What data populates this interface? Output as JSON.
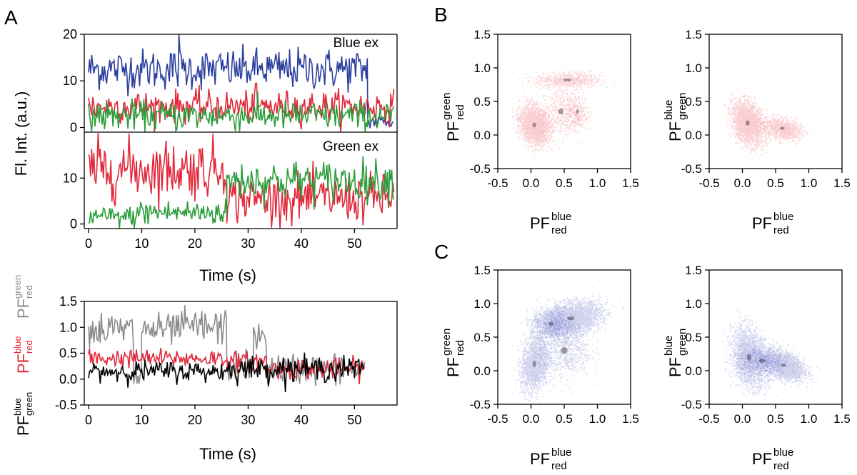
{
  "panel_labels": {
    "a": "A",
    "b": "B",
    "c": "C"
  },
  "colors": {
    "blue": "#2b3f9e",
    "red": "#e2283a",
    "green": "#2a9d3a",
    "gray": "#8c8c8c",
    "black": "#000000",
    "scatter_red": "#e8202e",
    "scatter_blue": "#2a30b0"
  },
  "pf_labels": {
    "base": "PF",
    "green_red": {
      "sup": "green",
      "sub": "red"
    },
    "blue_red": {
      "sup": "blue",
      "sub": "red"
    },
    "blue_green": {
      "sup": "blue",
      "sub": "green"
    }
  },
  "chart_data": [
    {
      "id": "A-blue-ex",
      "type": "line",
      "annotation": "Blue ex",
      "ylabel": "Fl. Int. (a.u.)",
      "xlim": [
        -0.8,
        58
      ],
      "ylim": [
        -1,
        20
      ],
      "yticks": [
        0,
        10,
        20
      ],
      "series": [
        {
          "name": "blue",
          "color": "#2b3f9e",
          "level": 12.5,
          "noise": 2.2,
          "t_end": 52.5,
          "tail": 1.2,
          "spike_t": 17,
          "spike_v": 20.5
        },
        {
          "name": "red",
          "color": "#e2283a",
          "level": 4.5,
          "noise": 1.7,
          "t_end": 57.5,
          "tail": 1.5,
          "spike_t": 31.5,
          "spike_v": 9.5
        },
        {
          "name": "green",
          "color": "#2a9d3a",
          "level": 2.5,
          "noise": 1.6,
          "t_end": 57.5,
          "tail": 1.5
        }
      ]
    },
    {
      "id": "A-green-ex",
      "type": "line",
      "annotation": "Green ex",
      "xlabel": "Time (s)",
      "xlim": [
        -0.8,
        58
      ],
      "ylim": [
        -1,
        20
      ],
      "yticks": [
        0,
        10
      ],
      "xticks": [
        0,
        10,
        20,
        30,
        40,
        50
      ],
      "series": [
        {
          "name": "red",
          "color": "#e2283a",
          "segments": [
            [
              0,
              26,
              12,
              3.2
            ],
            [
              26,
              57.5,
              5.5,
              2.6
            ]
          ]
        },
        {
          "name": "green",
          "color": "#2a9d3a",
          "segments": [
            [
              0,
              9,
              1.5,
              1.2
            ],
            [
              9,
              26,
              2.5,
              1.4
            ],
            [
              26,
              57.5,
              9.5,
              2.2
            ]
          ]
        }
      ]
    },
    {
      "id": "A-pf-trace",
      "type": "line",
      "xlabel": "Time (s)",
      "xlim": [
        -0.8,
        58
      ],
      "ylim": [
        -0.5,
        1.5
      ],
      "yticks": [
        -0.5,
        0.0,
        0.5,
        1.0,
        1.5
      ],
      "ytick_labels": [
        "-0.5",
        "0.0",
        "0.5",
        "1.0",
        "1.5"
      ],
      "xticks": [
        0,
        10,
        20,
        30,
        40,
        50
      ],
      "series": [
        {
          "name": "PF green→red",
          "color": "#8c8c8c",
          "segments": [
            [
              0,
              8.5,
              0.95,
              0.18
            ],
            [
              8.5,
              10,
              0.1,
              0.3
            ],
            [
              10,
              16.5,
              0.95,
              0.15
            ],
            [
              16.5,
              26,
              1.0,
              0.18
            ],
            [
              26,
              31,
              0.25,
              0.15
            ],
            [
              31,
              33.5,
              0.8,
              0.15
            ],
            [
              33.5,
              52,
              0.2,
              0.15
            ]
          ]
        },
        {
          "name": "PF blue→red",
          "color": "#e2283a",
          "segments": [
            [
              0,
              26,
              0.4,
              0.09
            ],
            [
              26,
              33.5,
              0.35,
              0.09
            ],
            [
              33.5,
              52,
              0.2,
              0.1
            ]
          ]
        },
        {
          "name": "PF blue→green",
          "color": "#000000",
          "segments": [
            [
              0,
              26,
              0.15,
              0.1
            ],
            [
              26,
              52,
              0.2,
              0.12
            ]
          ]
        }
      ]
    },
    {
      "id": "B-left",
      "type": "scatter",
      "color": "#e8202e",
      "xlim": [
        -0.5,
        1.5
      ],
      "ylim": [
        -0.5,
        1.5
      ],
      "ticks": [
        -0.5,
        0.0,
        0.5,
        1.0,
        1.5
      ],
      "tick_labels": [
        "-0.5",
        "0.0",
        "0.5",
        "1.0",
        "1.5"
      ],
      "xlabel": "PF blue red",
      "ylabel": "PF green red",
      "clusters": [
        {
          "x": 0.05,
          "y": 0.15,
          "sx": 0.11,
          "sy": 0.14,
          "n": 2600,
          "r": -0.2
        },
        {
          "x": 0.55,
          "y": 0.82,
          "sx": 0.25,
          "sy": 0.06,
          "n": 700
        },
        {
          "x": 0.45,
          "y": 0.35,
          "sx": 0.15,
          "sy": 0.18,
          "n": 500
        },
        {
          "x": 0.7,
          "y": 0.35,
          "sx": 0.08,
          "sy": 0.15,
          "n": 250
        }
      ]
    },
    {
      "id": "B-right",
      "type": "scatter",
      "color": "#e8202e",
      "xlim": [
        -0.5,
        1.5
      ],
      "ylim": [
        -0.5,
        1.5
      ],
      "ticks": [
        -0.5,
        0.0,
        0.5,
        1.0,
        1.5
      ],
      "tick_labels": [
        "-0.5",
        "0.0",
        "0.5",
        "1.0",
        "1.5"
      ],
      "xlabel": "PF blue red",
      "ylabel": "PF blue green",
      "clusters": [
        {
          "x": 0.08,
          "y": 0.18,
          "sx": 0.12,
          "sy": 0.16,
          "n": 2500,
          "r": -0.3
        },
        {
          "x": 0.6,
          "y": 0.1,
          "sx": 0.14,
          "sy": 0.08,
          "n": 1100,
          "r": -0.3
        }
      ]
    },
    {
      "id": "C-left",
      "type": "scatter",
      "color": "#2a30b0",
      "xlim": [
        -0.5,
        1.5
      ],
      "ylim": [
        -0.5,
        1.5
      ],
      "ticks": [
        -0.5,
        0.0,
        0.5,
        1.0,
        1.5
      ],
      "tick_labels": [
        "-0.5",
        "0.0",
        "0.5",
        "1.0",
        "1.5"
      ],
      "xlabel": "PF blue red",
      "ylabel": "PF green red",
      "clusters": [
        {
          "x": 0.05,
          "y": 0.1,
          "sx": 0.1,
          "sy": 0.2,
          "n": 2000,
          "r": 0.2
        },
        {
          "x": 0.6,
          "y": 0.78,
          "sx": 0.22,
          "sy": 0.12,
          "n": 3500,
          "r": 0.3
        },
        {
          "x": 0.3,
          "y": 0.7,
          "sx": 0.15,
          "sy": 0.12,
          "n": 900
        },
        {
          "x": 0.5,
          "y": 0.3,
          "sx": 0.2,
          "sy": 0.2,
          "n": 800
        }
      ]
    },
    {
      "id": "C-right",
      "type": "scatter",
      "color": "#2a30b0",
      "xlim": [
        -0.5,
        1.5
      ],
      "ylim": [
        -0.5,
        1.5
      ],
      "ticks": [
        -0.5,
        0.0,
        0.5,
        1.0,
        1.5
      ],
      "tick_labels": [
        "-0.5",
        "0.0",
        "0.5",
        "1.0",
        "1.5"
      ],
      "xlabel": "PF blue red",
      "ylabel": "PF blue green",
      "clusters": [
        {
          "x": 0.1,
          "y": 0.2,
          "sx": 0.13,
          "sy": 0.22,
          "n": 2400,
          "r": -0.3
        },
        {
          "x": 0.62,
          "y": 0.08,
          "sx": 0.15,
          "sy": 0.1,
          "n": 2600,
          "r": -0.4
        },
        {
          "x": 0.3,
          "y": 0.15,
          "sx": 0.2,
          "sy": 0.12,
          "n": 900
        }
      ]
    }
  ]
}
